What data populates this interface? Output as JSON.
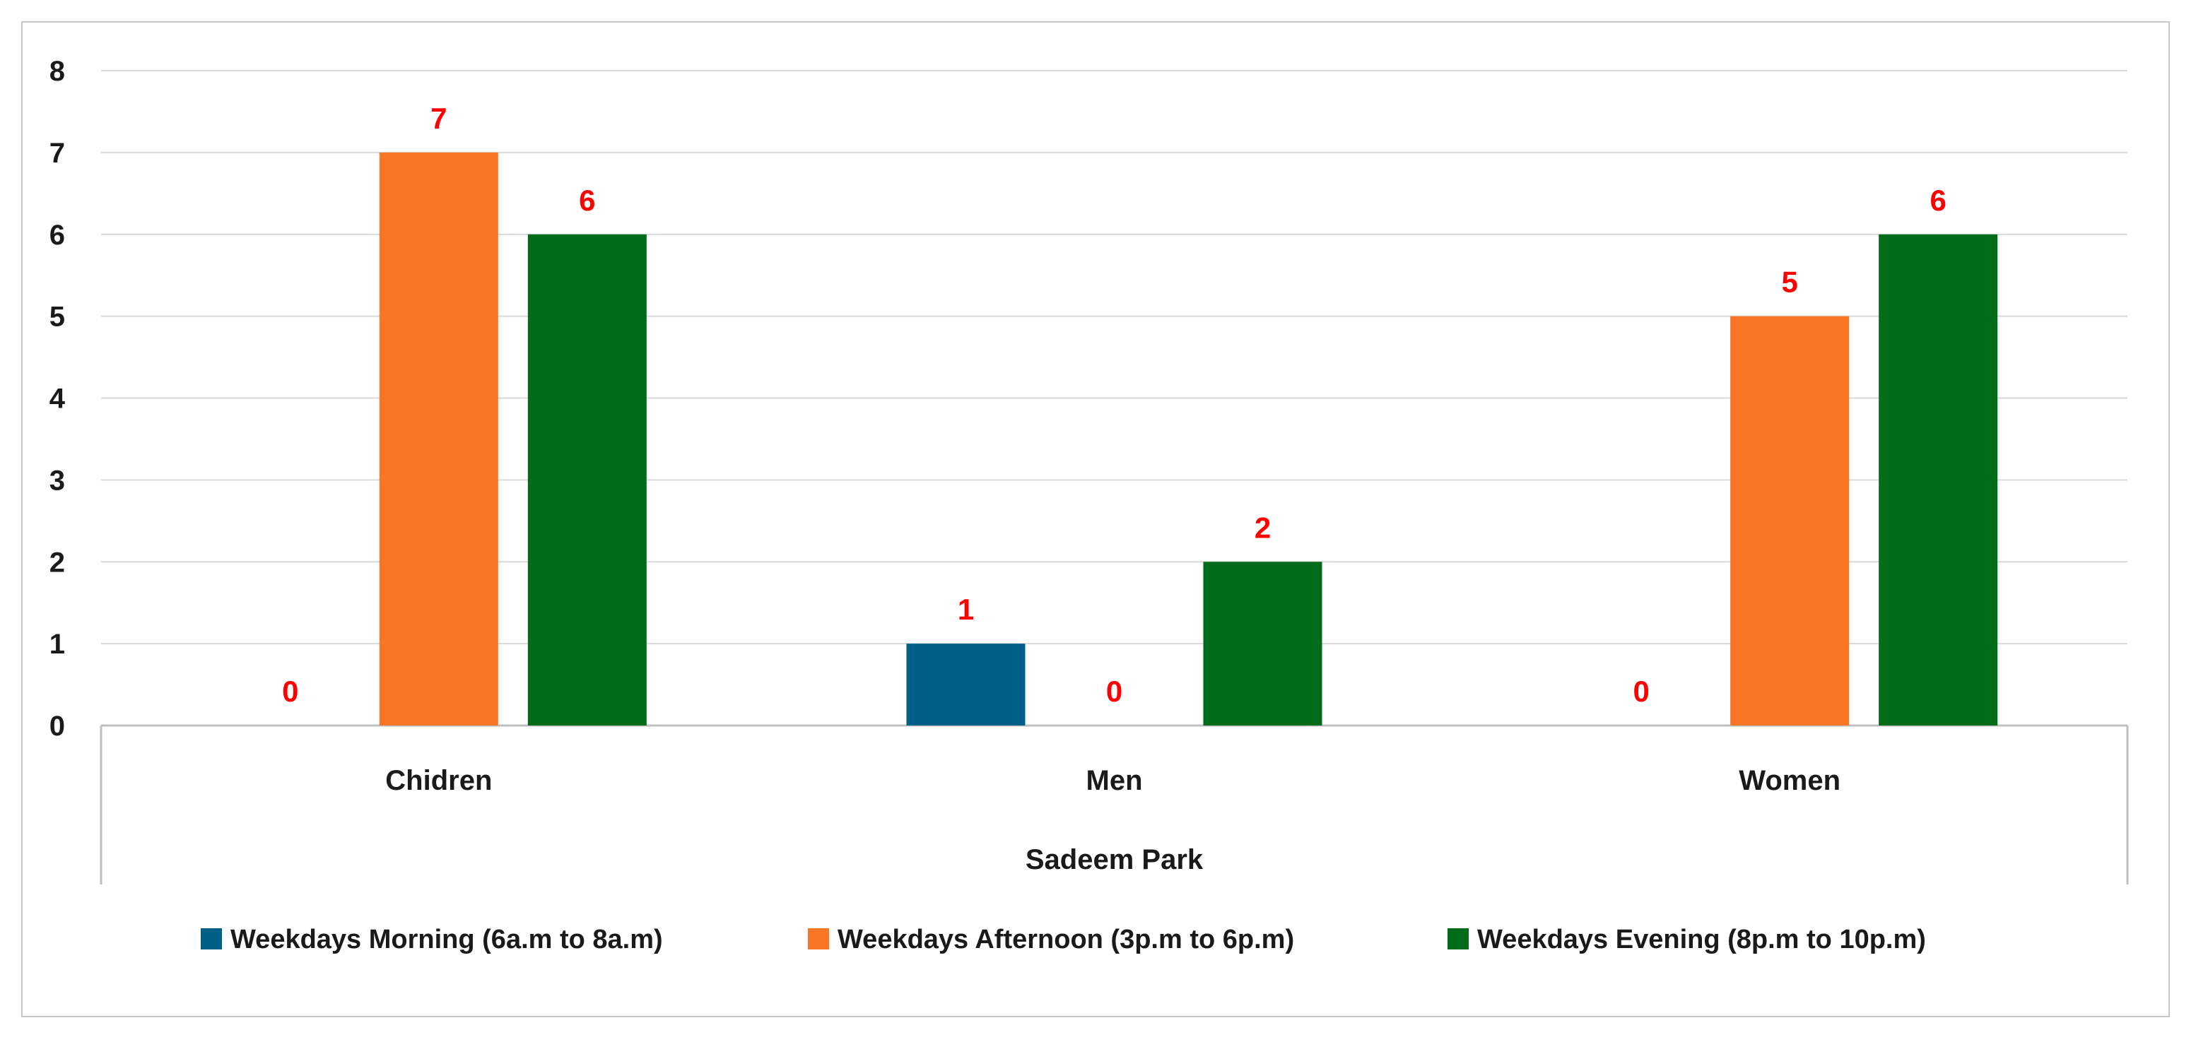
{
  "chart_data": {
    "type": "bar",
    "group_label": "Sadeem Park",
    "categories": [
      "Chidren",
      "Men",
      "Women"
    ],
    "series": [
      {
        "name": "Weekdays Morning (6a.m to 8a.m)",
        "color": "#005f87",
        "values": [
          0,
          1,
          0
        ]
      },
      {
        "name": "Weekdays Afternoon (3p.m to 6p.m)",
        "color": "#f97526",
        "values": [
          7,
          0,
          5
        ]
      },
      {
        "name": "Weekdays Evening (8p.m to 10p.m)",
        "color": "#006b18",
        "values": [
          6,
          2,
          6
        ]
      }
    ],
    "ylim": [
      0,
      8
    ],
    "yticks": [
      0,
      1,
      2,
      3,
      4,
      5,
      6,
      7,
      8
    ],
    "grid": true,
    "data_label_color": "#ff0000",
    "legend": "bottom"
  }
}
